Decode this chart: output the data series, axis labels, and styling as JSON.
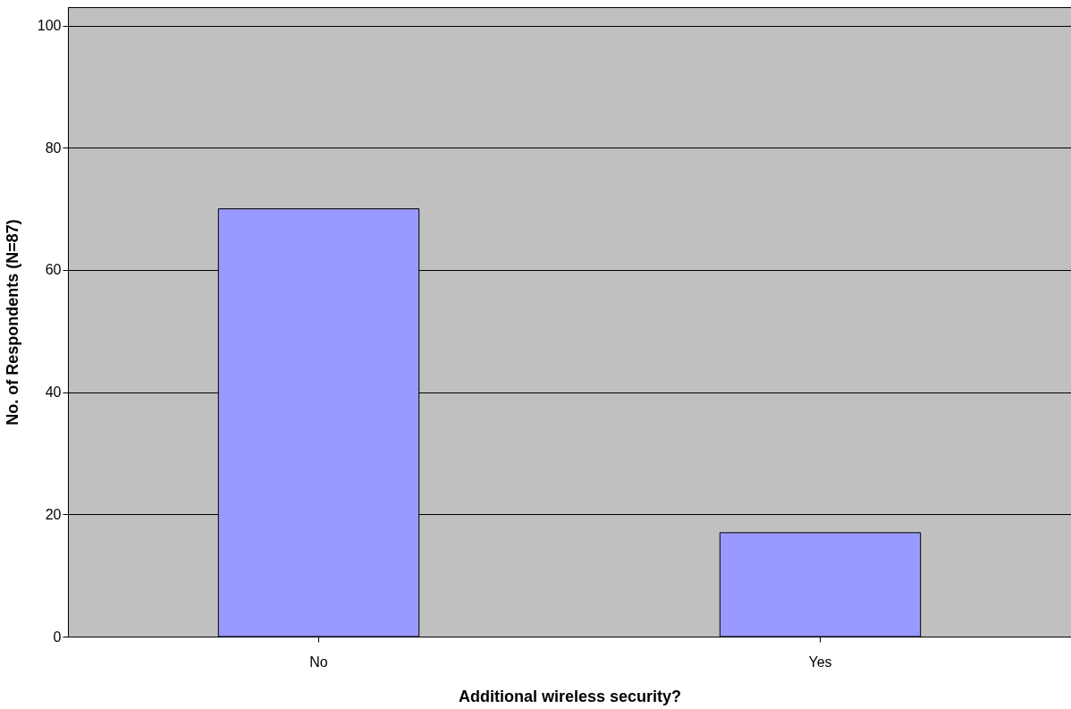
{
  "chart_data": {
    "type": "bar",
    "xlabel": "Additional wireless security?",
    "ylabel": "No. of Respondents (N=87)",
    "categories": [
      "No",
      "Yes"
    ],
    "values": [
      70,
      17
    ],
    "color": "#9999ff",
    "ylim": [
      0,
      103
    ],
    "yticks": [
      0,
      20,
      40,
      60,
      80,
      100
    ],
    "grid": "y"
  }
}
